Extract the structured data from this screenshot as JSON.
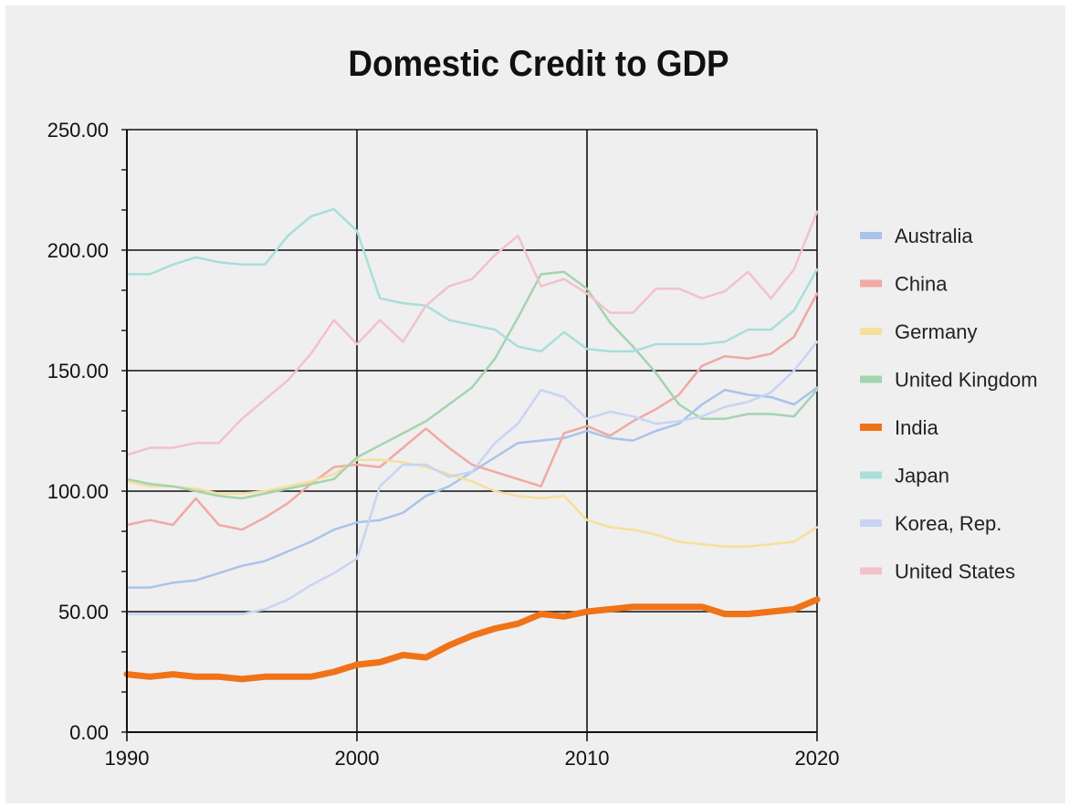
{
  "chart_data": {
    "type": "line",
    "title": "Domestic Credit to GDP",
    "xlabel": "",
    "ylabel": "",
    "xlim": [
      1990,
      2020
    ],
    "ylim": [
      0,
      250
    ],
    "x_ticks": [
      "1990",
      "2000",
      "2010",
      "2020"
    ],
    "y_ticks": [
      "0.00",
      "50.00",
      "100.00",
      "150.00",
      "200.00",
      "250.00"
    ],
    "grid": true,
    "legend_position": "right",
    "x": [
      1990,
      1991,
      1992,
      1993,
      1994,
      1995,
      1996,
      1997,
      1998,
      1999,
      2000,
      2001,
      2002,
      2003,
      2004,
      2005,
      2006,
      2007,
      2008,
      2009,
      2010,
      2011,
      2012,
      2013,
      2014,
      2015,
      2016,
      2017,
      2018,
      2019,
      2020
    ],
    "series": [
      {
        "name": "Australia",
        "color": "#a9c4ea",
        "width": 2.5,
        "values": [
          60,
          60,
          62,
          63,
          66,
          69,
          71,
          75,
          79,
          84,
          87,
          88,
          91,
          98,
          102,
          108,
          114,
          120,
          121,
          122,
          125,
          122,
          121,
          125,
          128,
          136,
          142,
          140,
          139,
          136,
          143
        ]
      },
      {
        "name": "China",
        "color": "#f0a9a3",
        "width": 2.5,
        "values": [
          86,
          88,
          86,
          97,
          86,
          84,
          89,
          95,
          103,
          110,
          111,
          110,
          118,
          126,
          118,
          111,
          108,
          105,
          102,
          124,
          127,
          123,
          129,
          134,
          140,
          152,
          156,
          155,
          157,
          164,
          182
        ]
      },
      {
        "name": "Germany",
        "color": "#f6df9c",
        "width": 2.5,
        "values": [
          104,
          102,
          102,
          101,
          99,
          99,
          100,
          102,
          104,
          107,
          113,
          113,
          112,
          110,
          107,
          104,
          100,
          98,
          97,
          98,
          88,
          85,
          84,
          82,
          79,
          78,
          77,
          77,
          78,
          79,
          85
        ]
      },
      {
        "name": "United Kingdom",
        "color": "#a3d4b0",
        "width": 2.5,
        "values": [
          105,
          103,
          102,
          100,
          98,
          97,
          99,
          101,
          103,
          105,
          114,
          119,
          124,
          129,
          136,
          143,
          155,
          172,
          190,
          191,
          184,
          170,
          160,
          149,
          136,
          130,
          130,
          132,
          132,
          131,
          142
        ]
      },
      {
        "name": "India",
        "color": "#f07318",
        "width": 7,
        "values": [
          24,
          23,
          24,
          23,
          23,
          22,
          23,
          23,
          23,
          25,
          28,
          29,
          32,
          31,
          36,
          40,
          43,
          45,
          49,
          48,
          50,
          51,
          52,
          52,
          52,
          52,
          49,
          49,
          50,
          51,
          55
        ]
      },
      {
        "name": "Japan",
        "color": "#a8dfda",
        "width": 2.5,
        "values": [
          190,
          190,
          194,
          197,
          195,
          194,
          194,
          206,
          214,
          217,
          208,
          180,
          178,
          177,
          171,
          169,
          167,
          160,
          158,
          166,
          159,
          158,
          158,
          161,
          161,
          161,
          162,
          167,
          167,
          175,
          192
        ]
      },
      {
        "name": "Korea, Rep.",
        "color": "#c8d4f3",
        "width": 2.5,
        "values": [
          49,
          49,
          49,
          49,
          49,
          49,
          51,
          55,
          61,
          66,
          72,
          102,
          111,
          111,
          106,
          108,
          120,
          128,
          142,
          139,
          130,
          133,
          131,
          128,
          129,
          131,
          135,
          137,
          141,
          150,
          162
        ]
      },
      {
        "name": "United States",
        "color": "#f3c1cb",
        "width": 2.5,
        "values": [
          115,
          118,
          118,
          120,
          120,
          130,
          138,
          146,
          157,
          171,
          161,
          171,
          162,
          177,
          185,
          188,
          198,
          206,
          185,
          188,
          182,
          174,
          174,
          184,
          184,
          180,
          183,
          191,
          180,
          192,
          216
        ]
      }
    ]
  }
}
